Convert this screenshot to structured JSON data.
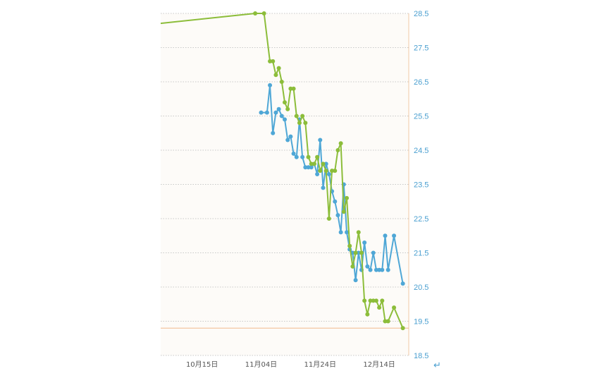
{
  "chart_data": {
    "type": "line",
    "title": "",
    "xlabel": "",
    "ylabel": "",
    "x_ticks": [
      "10月15日",
      "11月04日",
      "11月24日",
      "12月14日"
    ],
    "y_ticks": [
      "28.5",
      "27.5",
      "26.5",
      "25.5",
      "24.5",
      "23.5",
      "22.5",
      "21.5",
      "20.5",
      "19.5",
      "18.5"
    ],
    "ylim": [
      18.5,
      28.5
    ],
    "xlim": [
      "2023-10-01",
      "2023-12-24"
    ],
    "grid": true,
    "target_line": 19.3,
    "series": [
      {
        "color": "#8cbd3a",
        "points": [
          [
            "2023-09-30",
            28.2
          ],
          [
            "2023-11-02",
            28.5
          ],
          [
            "2023-11-05",
            28.5
          ],
          [
            "2023-11-07",
            27.1
          ],
          [
            "2023-11-08",
            27.1
          ],
          [
            "2023-11-09",
            26.7
          ],
          [
            "2023-11-10",
            26.9
          ],
          [
            "2023-11-11",
            26.5
          ],
          [
            "2023-11-12",
            25.9
          ],
          [
            "2023-11-13",
            25.7
          ],
          [
            "2023-11-14",
            26.3
          ],
          [
            "2023-11-15",
            26.3
          ],
          [
            "2023-11-16",
            25.5
          ],
          [
            "2023-11-17",
            25.3
          ],
          [
            "2023-11-18",
            25.5
          ],
          [
            "2023-11-19",
            25.3
          ],
          [
            "2023-11-20",
            24.3
          ],
          [
            "2023-11-21",
            24.1
          ],
          [
            "2023-11-22",
            24.1
          ],
          [
            "2023-11-23",
            24.3
          ],
          [
            "2023-11-24",
            23.9
          ],
          [
            "2023-11-25",
            24.1
          ],
          [
            "2023-11-26",
            23.9
          ],
          [
            "2023-11-27",
            22.5
          ],
          [
            "2023-11-28",
            23.9
          ],
          [
            "2023-11-29",
            23.9
          ],
          [
            "2023-11-30",
            24.5
          ],
          [
            "2023-12-01",
            24.7
          ],
          [
            "2023-12-02",
            22.7
          ],
          [
            "2023-12-03",
            23.1
          ],
          [
            "2023-12-04",
            21.7
          ],
          [
            "2023-12-05",
            21.1
          ],
          [
            "2023-12-06",
            21.5
          ],
          [
            "2023-12-07",
            22.1
          ],
          [
            "2023-12-08",
            21.5
          ],
          [
            "2023-12-09",
            20.1
          ],
          [
            "2023-12-10",
            19.7
          ],
          [
            "2023-12-11",
            20.1
          ],
          [
            "2023-12-12",
            20.1
          ],
          [
            "2023-12-13",
            20.1
          ],
          [
            "2023-12-14",
            19.9
          ],
          [
            "2023-12-15",
            20.1
          ],
          [
            "2023-12-16",
            19.5
          ],
          [
            "2023-12-17",
            19.5
          ],
          [
            "2023-12-19",
            19.9
          ],
          [
            "2023-12-22",
            19.3
          ]
        ]
      },
      {
        "color": "#4fa7d6",
        "points": [
          [
            "2023-11-04",
            25.6
          ],
          [
            "2023-11-06",
            25.6
          ],
          [
            "2023-11-07",
            26.4
          ],
          [
            "2023-11-08",
            25.0
          ],
          [
            "2023-11-09",
            25.6
          ],
          [
            "2023-11-10",
            25.7
          ],
          [
            "2023-11-11",
            25.5
          ],
          [
            "2023-11-12",
            25.4
          ],
          [
            "2023-11-13",
            24.8
          ],
          [
            "2023-11-14",
            24.9
          ],
          [
            "2023-11-15",
            24.4
          ],
          [
            "2023-11-16",
            24.3
          ],
          [
            "2023-11-17",
            25.4
          ],
          [
            "2023-11-18",
            24.3
          ],
          [
            "2023-11-19",
            24.0
          ],
          [
            "2023-11-20",
            24.0
          ],
          [
            "2023-11-21",
            24.0
          ],
          [
            "2023-11-22",
            24.1
          ],
          [
            "2023-11-23",
            23.8
          ],
          [
            "2023-11-24",
            24.8
          ],
          [
            "2023-11-25",
            23.4
          ],
          [
            "2023-11-26",
            24.1
          ],
          [
            "2023-11-27",
            23.8
          ],
          [
            "2023-11-28",
            23.3
          ],
          [
            "2023-11-29",
            23.0
          ],
          [
            "2023-11-30",
            22.6
          ],
          [
            "2023-12-01",
            22.1
          ],
          [
            "2023-12-02",
            23.5
          ],
          [
            "2023-12-03",
            22.1
          ],
          [
            "2023-12-04",
            21.6
          ],
          [
            "2023-12-05",
            21.5
          ],
          [
            "2023-12-06",
            20.7
          ],
          [
            "2023-12-07",
            21.5
          ],
          [
            "2023-12-08",
            21.0
          ],
          [
            "2023-12-09",
            21.8
          ],
          [
            "2023-12-10",
            21.1
          ],
          [
            "2023-12-11",
            21.0
          ],
          [
            "2023-12-12",
            21.5
          ],
          [
            "2023-12-13",
            21.0
          ],
          [
            "2023-12-14",
            21.0
          ],
          [
            "2023-12-15",
            21.0
          ],
          [
            "2023-12-16",
            22.0
          ],
          [
            "2023-12-17",
            21.0
          ],
          [
            "2023-12-19",
            22.0
          ],
          [
            "2023-12-22",
            20.6
          ]
        ]
      }
    ]
  },
  "colors": {
    "grid": "#c8c8c8",
    "axis_right": "#f1c9a5",
    "target": "#f0b98c",
    "ytick": "#4a9fd0",
    "background": "#fdfbf8"
  },
  "footer": {
    "return_glyph": "↵"
  }
}
